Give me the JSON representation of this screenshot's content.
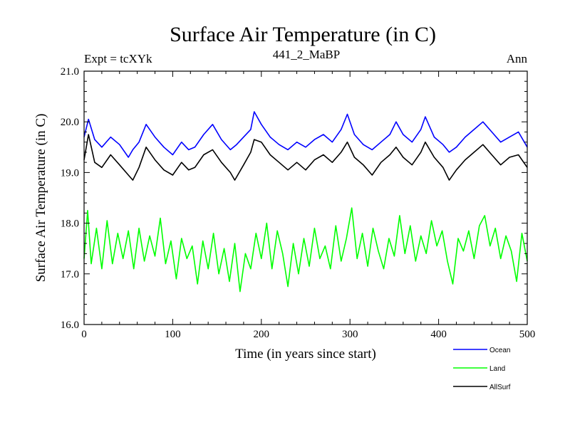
{
  "chart_data": {
    "type": "line",
    "title": "Surface Air Temperature (in C)",
    "subtitle": "441_2_MaBP",
    "left_label": "Expt = tcXYk",
    "right_label": "Ann",
    "xlabel": "Time (in years since start)",
    "ylabel": "Surface Air Temperature (in C)",
    "xlim": [
      0,
      500
    ],
    "ylim": [
      16.0,
      21.0
    ],
    "x_ticks": [
      0,
      100,
      200,
      300,
      400,
      500
    ],
    "y_ticks": [
      "16.0",
      "17.0",
      "18.0",
      "19.0",
      "20.0",
      "21.0"
    ],
    "grid": false,
    "legend_position": "bottom-right",
    "series": [
      {
        "name": "Ocean",
        "color": "#0000ff",
        "x": [
          0,
          5,
          12,
          20,
          30,
          40,
          50,
          55,
          62,
          70,
          80,
          90,
          100,
          110,
          118,
          125,
          135,
          145,
          155,
          165,
          172,
          180,
          188,
          192,
          200,
          210,
          220,
          230,
          240,
          250,
          260,
          270,
          280,
          290,
          297,
          305,
          315,
          325,
          335,
          345,
          352,
          360,
          370,
          380,
          385,
          395,
          405,
          412,
          420,
          430,
          440,
          450,
          460,
          470,
          480,
          490,
          500
        ],
        "y": [
          19.7,
          20.05,
          19.65,
          19.5,
          19.7,
          19.55,
          19.3,
          19.45,
          19.6,
          19.95,
          19.7,
          19.5,
          19.35,
          19.6,
          19.45,
          19.5,
          19.75,
          19.95,
          19.65,
          19.45,
          19.55,
          19.7,
          19.85,
          20.2,
          19.95,
          19.7,
          19.55,
          19.45,
          19.6,
          19.5,
          19.65,
          19.75,
          19.6,
          19.85,
          20.15,
          19.75,
          19.55,
          19.45,
          19.6,
          19.75,
          20.0,
          19.75,
          19.6,
          19.85,
          20.1,
          19.7,
          19.55,
          19.4,
          19.5,
          19.7,
          19.85,
          20.0,
          19.8,
          19.6,
          19.7,
          19.8,
          19.5
        ]
      },
      {
        "name": "Land",
        "color": "#00ff00",
        "x": [
          0,
          4,
          8,
          14,
          20,
          26,
          32,
          38,
          44,
          50,
          56,
          62,
          68,
          74,
          80,
          86,
          92,
          98,
          104,
          110,
          116,
          122,
          128,
          134,
          140,
          146,
          152,
          158,
          164,
          170,
          176,
          182,
          188,
          194,
          200,
          206,
          212,
          218,
          224,
          230,
          236,
          242,
          248,
          254,
          260,
          266,
          272,
          278,
          284,
          290,
          296,
          302,
          308,
          314,
          320,
          326,
          332,
          338,
          344,
          350,
          356,
          362,
          368,
          374,
          380,
          386,
          392,
          398,
          404,
          410,
          416,
          422,
          428,
          434,
          440,
          446,
          452,
          458,
          464,
          470,
          476,
          482,
          488,
          494,
          500
        ],
        "y": [
          17.3,
          18.25,
          17.2,
          17.9,
          17.1,
          18.05,
          17.2,
          17.8,
          17.3,
          17.85,
          17.1,
          17.9,
          17.25,
          17.75,
          17.35,
          18.1,
          17.2,
          17.65,
          16.9,
          17.7,
          17.3,
          17.55,
          16.8,
          17.65,
          17.1,
          17.8,
          17.0,
          17.5,
          16.85,
          17.6,
          16.65,
          17.4,
          17.1,
          17.8,
          17.3,
          18.0,
          17.1,
          17.85,
          17.4,
          16.75,
          17.6,
          17.0,
          17.7,
          17.15,
          17.9,
          17.3,
          17.55,
          17.1,
          17.95,
          17.25,
          17.7,
          18.3,
          17.3,
          17.8,
          17.15,
          17.9,
          17.45,
          17.1,
          17.7,
          17.35,
          18.15,
          17.4,
          17.95,
          17.25,
          17.75,
          17.4,
          18.05,
          17.55,
          17.85,
          17.25,
          16.8,
          17.7,
          17.45,
          17.85,
          17.3,
          17.95,
          18.15,
          17.55,
          17.9,
          17.3,
          17.75,
          17.45,
          16.85,
          17.8,
          17.25
        ]
      },
      {
        "name": "AllSurf",
        "color": "#000000",
        "x": [
          0,
          5,
          12,
          20,
          30,
          40,
          50,
          55,
          62,
          70,
          80,
          90,
          100,
          110,
          118,
          125,
          135,
          145,
          155,
          165,
          170,
          180,
          188,
          192,
          200,
          210,
          220,
          230,
          240,
          250,
          260,
          270,
          280,
          290,
          297,
          305,
          315,
          325,
          335,
          345,
          352,
          360,
          370,
          380,
          385,
          395,
          405,
          412,
          420,
          430,
          440,
          450,
          460,
          470,
          480,
          490,
          500
        ],
        "y": [
          19.25,
          19.75,
          19.2,
          19.1,
          19.35,
          19.15,
          18.95,
          18.85,
          19.1,
          19.5,
          19.25,
          19.05,
          18.95,
          19.2,
          19.05,
          19.1,
          19.35,
          19.45,
          19.2,
          19.0,
          18.85,
          19.15,
          19.4,
          19.65,
          19.6,
          19.35,
          19.2,
          19.05,
          19.2,
          19.05,
          19.25,
          19.35,
          19.2,
          19.4,
          19.6,
          19.3,
          19.15,
          18.95,
          19.2,
          19.35,
          19.5,
          19.3,
          19.15,
          19.4,
          19.6,
          19.3,
          19.1,
          18.85,
          19.05,
          19.25,
          19.4,
          19.55,
          19.35,
          19.15,
          19.3,
          19.35,
          19.1
        ]
      }
    ]
  }
}
